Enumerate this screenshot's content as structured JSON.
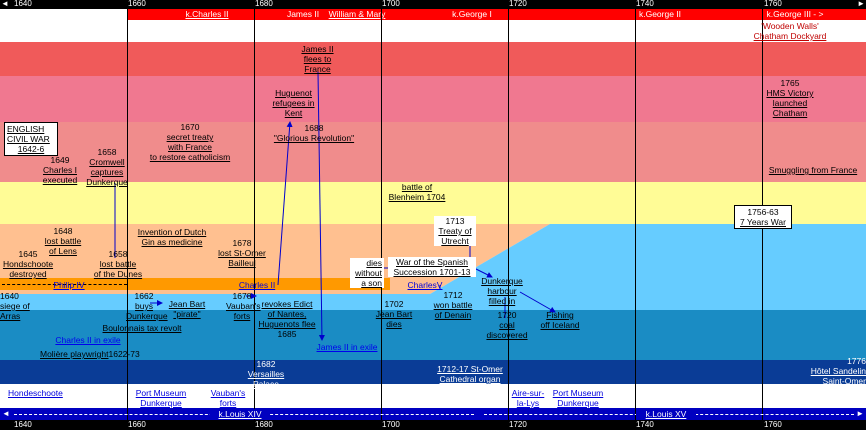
{
  "axis": {
    "ticks": [
      "1640",
      "1660",
      "1680",
      "1700",
      "1720",
      "1740",
      "1760"
    ],
    "left_arrow": "◄",
    "right_arrow": "►"
  },
  "monarchs_english": [
    "k.Charles II",
    "James II",
    "William & Mary",
    "k.George I",
    "k.George II",
    "k.George III - >"
  ],
  "monarchs_french": {
    "louis14": "k.Louis XIV",
    "louis15": "k.Louis XV"
  },
  "events": {
    "wooden_walls": "'Wooden Walls'",
    "chatham_dockyard": "Chatham Dockyard",
    "james2_flees": [
      "James II",
      "flees to",
      "France"
    ],
    "huguenot_refugees": [
      "Huguenot",
      "refugees in",
      "Kent"
    ],
    "hms_victory": [
      "1765",
      "HMS Victory",
      "launched",
      "Chatham"
    ],
    "english_civil_war": [
      "ENGLISH",
      "CIVIL WAR",
      "1642-6"
    ],
    "secret_treaty": [
      "1670",
      "secret treaty",
      "with France",
      "to restore catholicism"
    ],
    "glorious_revolution": [
      "1688",
      "\"Glorious Revolution\""
    ],
    "charles1_executed": [
      "1649",
      "Charles I",
      "executed"
    ],
    "cromwell_dunkerque": [
      "1658",
      "Cromwell",
      "captures",
      "Dunkerque"
    ],
    "smuggling": "Smuggling from France",
    "blenheim": [
      "battle of",
      "Blenheim 1704"
    ],
    "seven_years_war": [
      "1756-63",
      "7 Years War"
    ],
    "treaty_utrecht": [
      "1713",
      "Treaty of",
      "Utrecht"
    ],
    "battle_lens": [
      "1648",
      "lost battle",
      "of Lens"
    ],
    "dutch_gin": [
      "Invention of Dutch",
      "Gin as medicine"
    ],
    "st_omer_bailleul": [
      "1678",
      "lost St-Omer",
      "Bailleul"
    ],
    "hondschoote_destroyed": [
      "1645",
      "Hondschoote",
      "destroyed"
    ],
    "battle_dunes": [
      "1658",
      "lost battle",
      "of the Dunes"
    ],
    "dies_without_son": [
      "dies",
      "without",
      "a son"
    ],
    "war_spanish_succession": [
      "War of the Spanish",
      "Succession 1701-13"
    ],
    "dunkerque_harbour": [
      "Dunkerque",
      "harbour",
      "filled in"
    ],
    "philip4": "Philip IV",
    "charles2_spain": "Charles II",
    "charles5": "CharlesV",
    "siege_arras": [
      "1640",
      "siege of",
      "Arras"
    ],
    "buys_dunkerque": [
      "1662",
      "buys",
      "Dunkerque"
    ],
    "jean_bart_pirate": [
      "Jean Bart",
      "\"pirate\""
    ],
    "vauban_forts_1678": [
      "1678",
      "Vauban's",
      "forts"
    ],
    "revokes_nantes": [
      "revokes Edict",
      "of Nantes,",
      "Huguenots flee",
      "1685"
    ],
    "jean_bart_dies": [
      "1702",
      "Jean Bart",
      "dies"
    ],
    "battle_denain": [
      "1712",
      "won battle",
      "of Denain"
    ],
    "coal_discovered": [
      "1720",
      "coal",
      "discovered"
    ],
    "fishing_iceland": [
      "Fishing",
      "off Iceland"
    ],
    "boulonnais": "Boulonnais tax revolt",
    "charles2_exile": "Charles II in exile",
    "james2_exile": "James II in exile",
    "moliere": "Molière playwright",
    "moliere_dates": "1622-73",
    "versailles": [
      "1682",
      "Versailles",
      "Palace"
    ],
    "st_omer_organ": [
      "1712-17 St-Omer",
      "Cathedral organ"
    ],
    "hotel_sandelin": [
      "1776",
      "Hôtel Sandelin",
      "Saint-Omer"
    ]
  },
  "places": {
    "hondeschoote": "Hondeschoote",
    "port_museum_1": [
      "Port Museum",
      "Dunkerque"
    ],
    "vauban_forts": [
      "Vauban's",
      "forts"
    ],
    "aire_sur_la_lys": [
      "Aire-sur-",
      "la-Lys"
    ],
    "port_museum_2": [
      "Port Museum",
      "Dunkerque"
    ]
  },
  "colors": {
    "axis_bar": "#000000",
    "monarch_bar": "#ff0000",
    "band_red": "#f05a5a",
    "band_pink": "#f07890",
    "band_salmon": "#f08c8c",
    "band_yellow": "#fffc96",
    "band_peach": "#ffc090",
    "band_orange": "#ff9900",
    "band_lightblue": "#66ccff",
    "band_teal": "#1a8cc4",
    "band_navy": "#0a3c96",
    "louis_bar": "#0000c0"
  }
}
